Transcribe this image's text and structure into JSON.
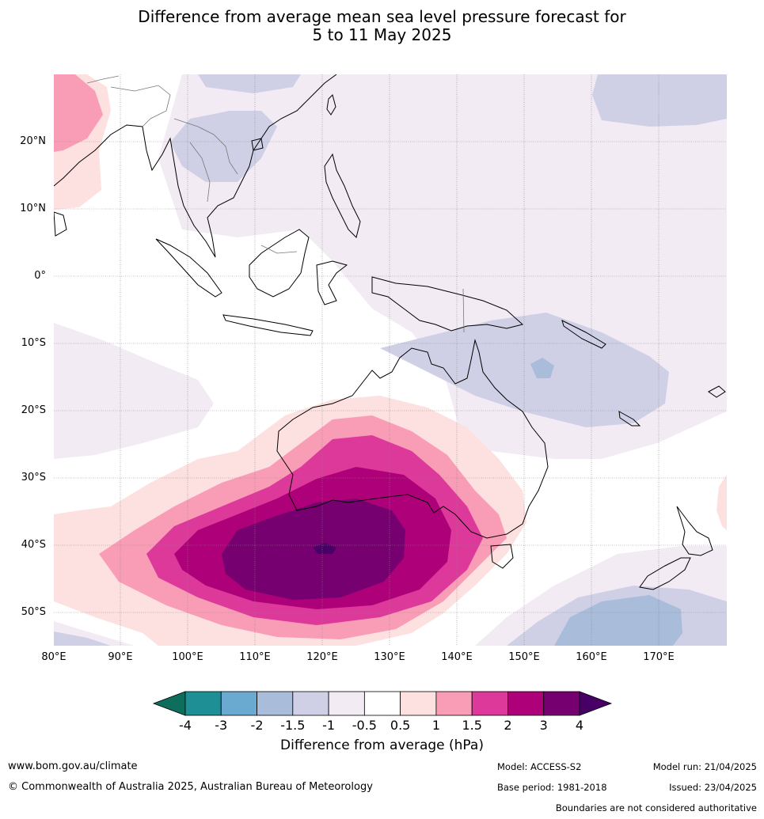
{
  "title": {
    "line1": "Difference from average mean sea level pressure forecast for",
    "line2": "5 to 11 May 2025"
  },
  "map": {
    "lat_labels": [
      "20°N",
      "10°N",
      "0°",
      "10°S",
      "20°S",
      "30°S",
      "40°S",
      "50°S"
    ],
    "lon_labels": [
      "80°E",
      "90°E",
      "100°E",
      "110°E",
      "120°E",
      "130°E",
      "140°E",
      "150°E",
      "160°E",
      "170°E"
    ]
  },
  "colorbar": {
    "ticks": [
      "-4",
      "-3",
      "-2",
      "-1.5",
      "-1",
      "-0.5",
      "0.5",
      "1",
      "1.5",
      "2",
      "3",
      "4"
    ],
    "colors": [
      "#0e6e5c",
      "#1f8f96",
      "#6aa9d0",
      "#a9bcd9",
      "#cfd0e6",
      "#f2ebf4",
      "#ffffff",
      "#fde0e0",
      "#f99db6",
      "#dc399a",
      "#ae0078",
      "#770070",
      "#470066"
    ],
    "title": "Difference from average (hPa)"
  },
  "footer": {
    "website": "www.bom.gov.au/climate",
    "copyright": "© Commonwealth of Australia 2025, Australian Bureau of Meteorology",
    "model": "Model: ACCESS-S2",
    "base_period": "Base period: 1981-2018",
    "model_run": "Model run: 21/04/2025",
    "issued": "Issued: 23/04/2025",
    "boundaries_note": "Boundaries are not considered authoritative"
  }
}
